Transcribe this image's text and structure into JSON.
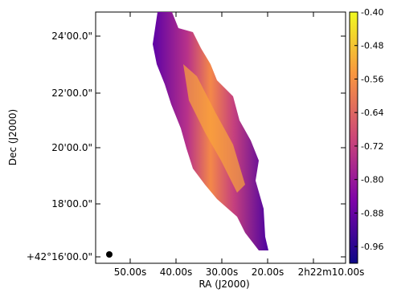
{
  "chart_data": {
    "type": "image",
    "xlabel": "RA (J2000)",
    "ylabel": "Dec (J2000)",
    "xtick_labels": [
      "50.00s",
      "40.00s",
      "30.00s",
      "20.00s",
      "2h22m10.00s"
    ],
    "ytick_labels": [
      "+42°16'00.0\"",
      "18'00.0\"",
      "20'00.0\"",
      "22'00.0\"",
      "24'00.0\""
    ],
    "colormap": "plasma",
    "clim": [
      -1.0,
      -0.4
    ],
    "cticks": [
      {
        "value": -0.96,
        "label": "-0.96"
      },
      {
        "value": -0.88,
        "label": "-0.88"
      },
      {
        "value": -0.8,
        "label": "-0.80"
      },
      {
        "value": -0.72,
        "label": "-0.72"
      },
      {
        "value": -0.64,
        "label": "-0.64"
      },
      {
        "value": -0.56,
        "label": "-0.56"
      },
      {
        "value": -0.48,
        "label": "-0.48"
      },
      {
        "value": -0.4,
        "label": "-0.40"
      }
    ]
  }
}
